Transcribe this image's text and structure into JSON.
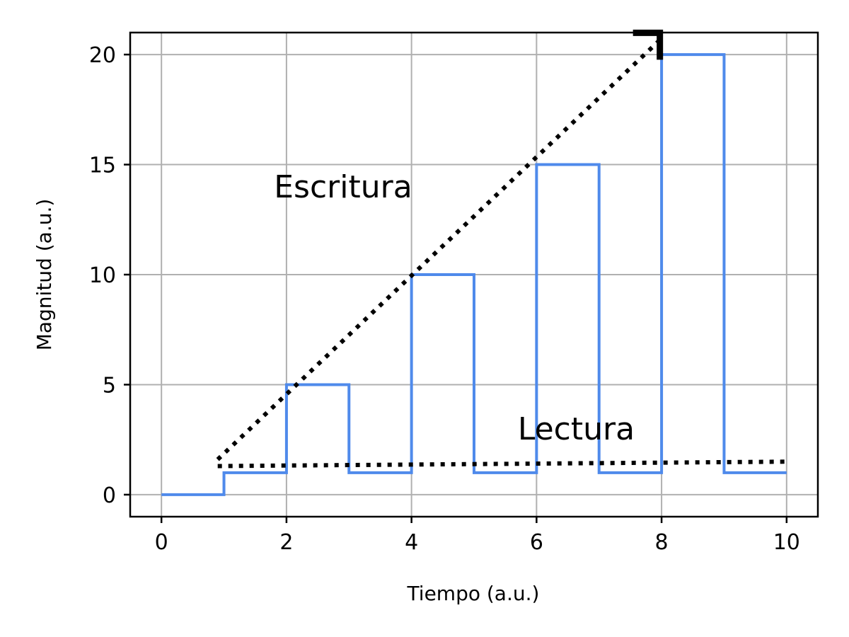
{
  "chart_data": {
    "type": "line",
    "xlabel": "Tiempo (a.u.)",
    "ylabel": "Magnitud (a.u.)",
    "xlim": [
      -0.5,
      10.5
    ],
    "ylim": [
      -1,
      21
    ],
    "x_ticks": [
      0,
      2,
      4,
      6,
      8,
      10
    ],
    "y_ticks": [
      0,
      5,
      10,
      15,
      20
    ],
    "grid": true,
    "series": [
      {
        "style": "step-post",
        "color": "#4f8aeb",
        "x": [
          0,
          1,
          2,
          3,
          4,
          5,
          6,
          7,
          8,
          9,
          10
        ],
        "y": [
          0,
          1,
          5,
          1,
          10,
          1,
          15,
          1,
          20,
          1,
          1
        ]
      }
    ],
    "trend_lines": [
      {
        "label": "Escritura",
        "color": "#000000",
        "style": "dotted",
        "x": [
          0.9,
          7.95
        ],
        "y": [
          1.6,
          20.6
        ],
        "label_at": [
          1.8,
          13.5
        ]
      },
      {
        "label": "Lectura",
        "color": "#000000",
        "style": "dotted",
        "x": [
          0.9,
          10.0
        ],
        "y": [
          1.3,
          1.5
        ],
        "label_at": [
          5.7,
          2.5
        ]
      }
    ],
    "arrow_marker": {
      "x": 7.95,
      "y": 20.6,
      "color": "#000000"
    }
  }
}
